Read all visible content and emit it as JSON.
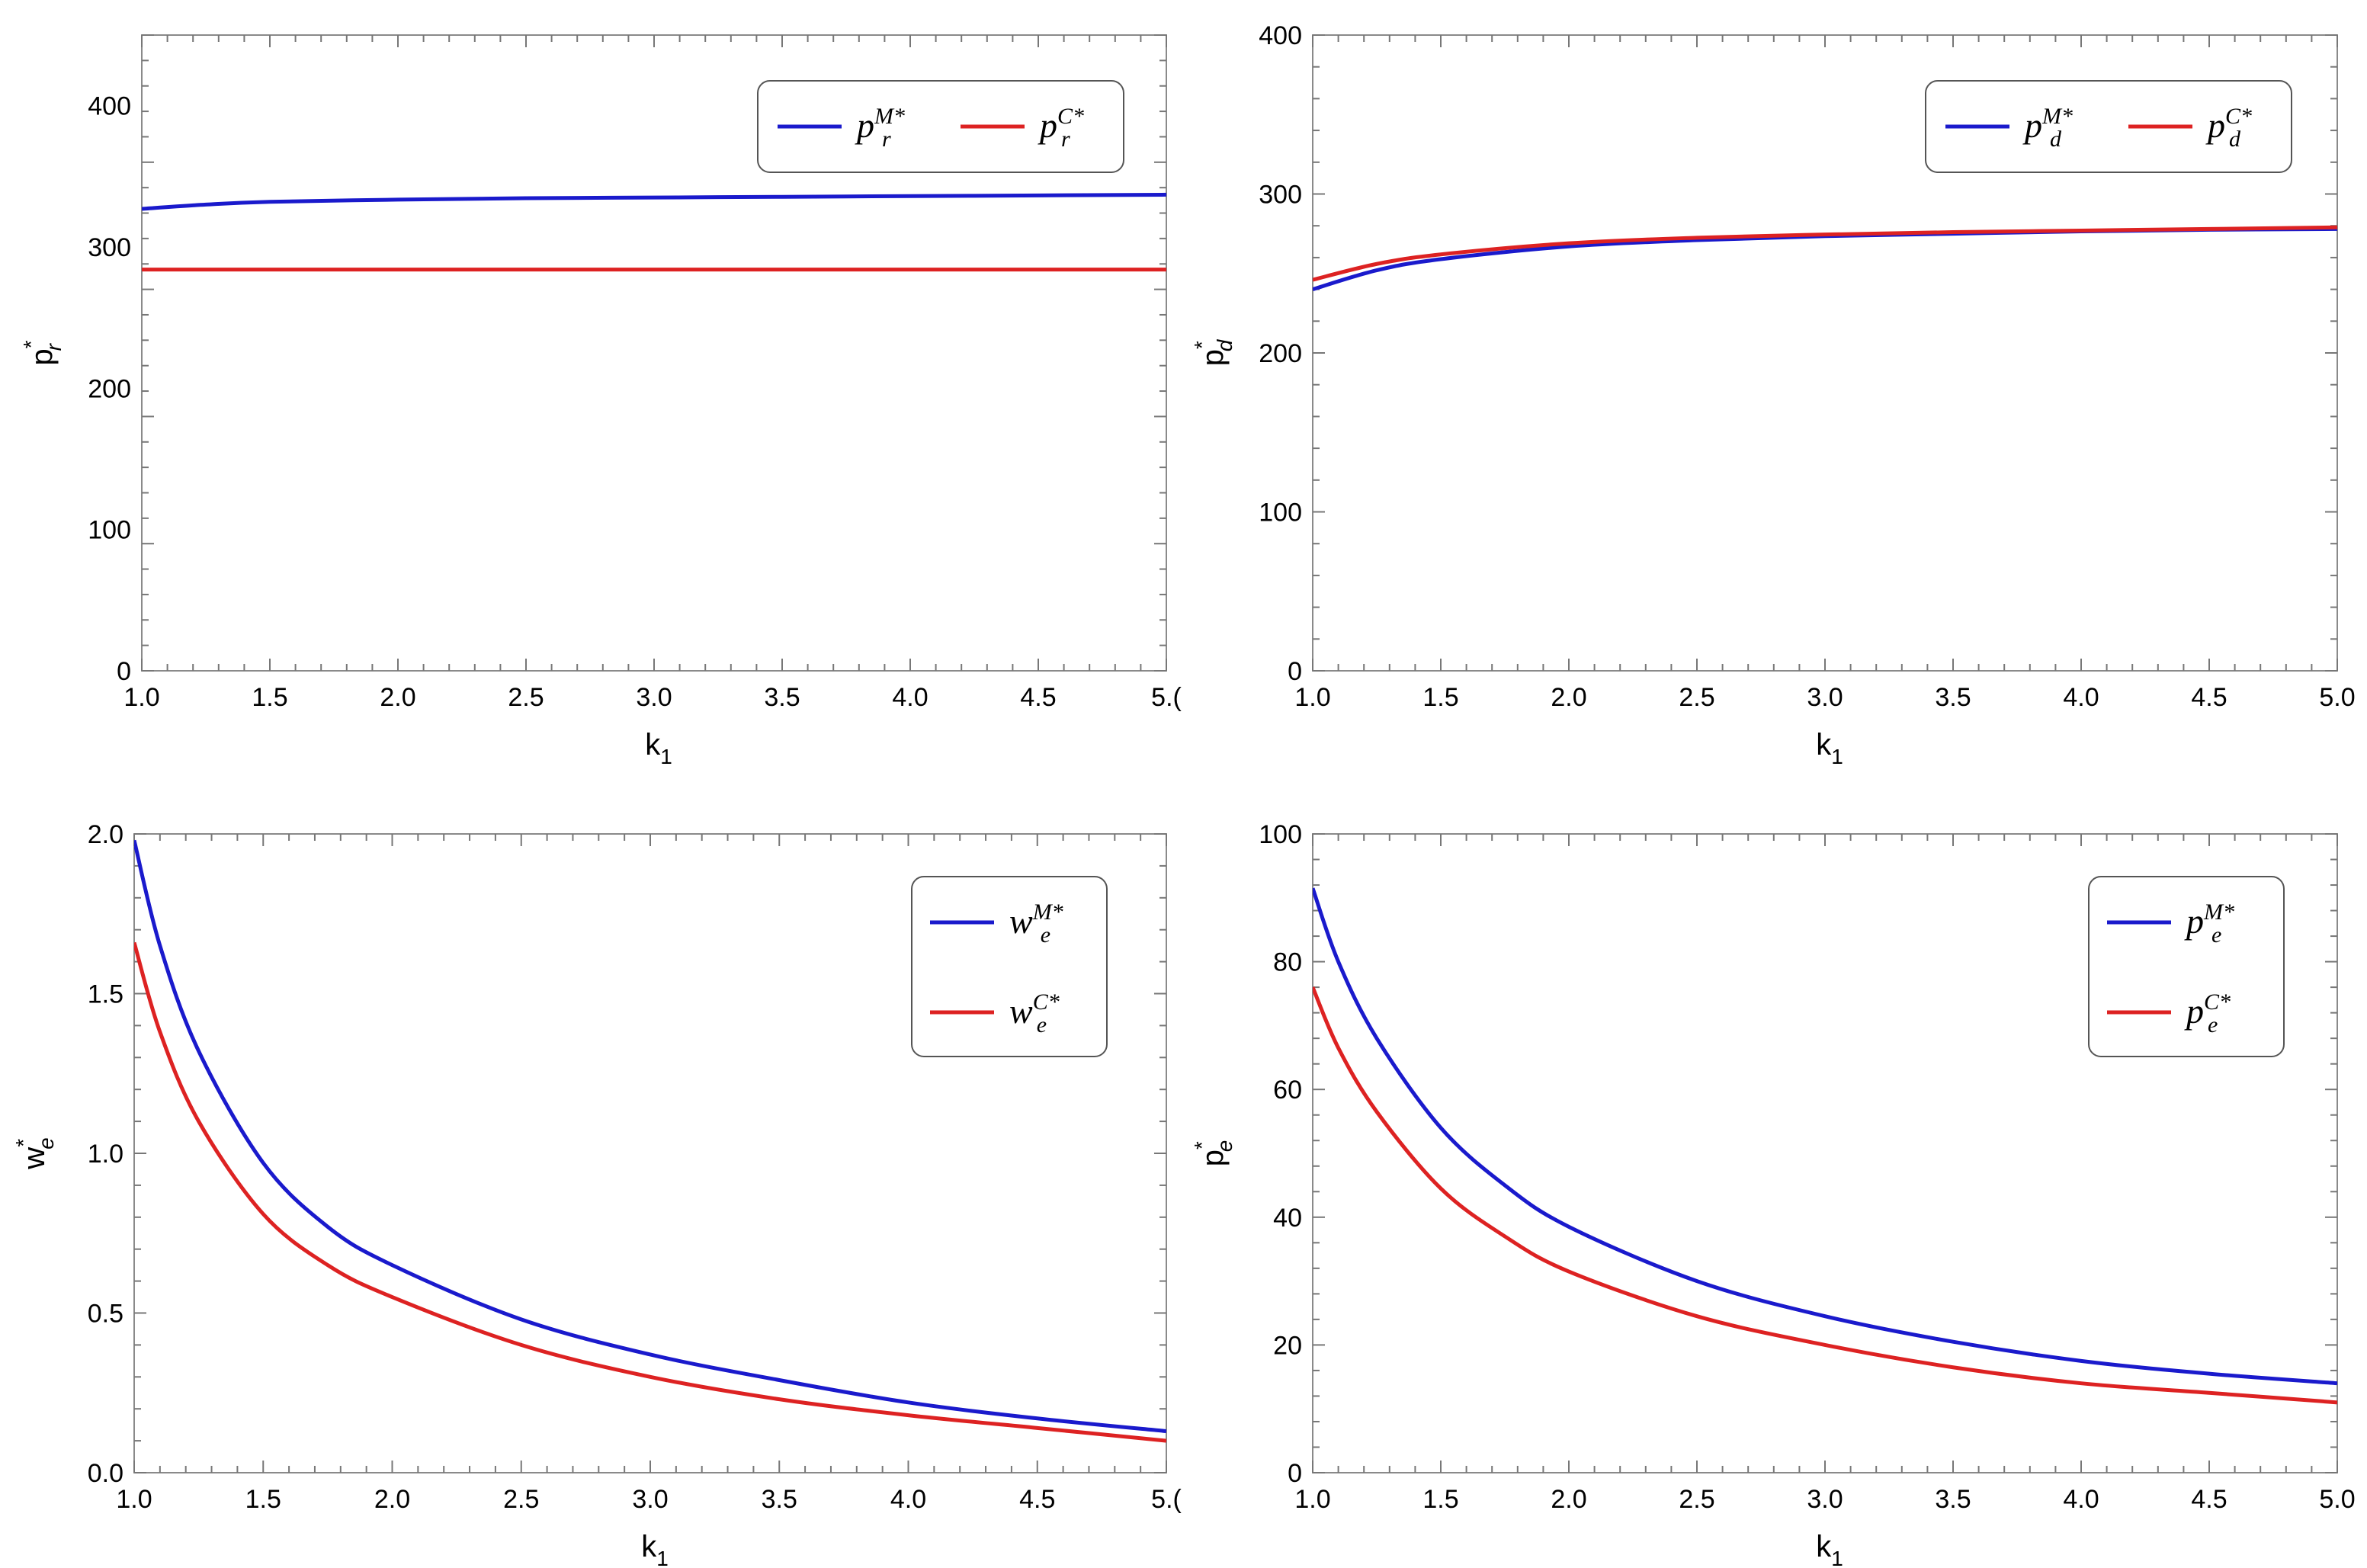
{
  "figure": {
    "background": "#ffffff"
  },
  "colors": {
    "M": "#1a1acc",
    "C": "#dd2222",
    "frame": "#8a8a8a"
  },
  "chart_data": [
    {
      "id": "pr",
      "type": "line",
      "xlabel": "k",
      "xlabel_sub": "1",
      "ylabel": "p",
      "ylabel_sup": "*",
      "ylabel_sub": "r",
      "xlim": [
        1.0,
        5.0
      ],
      "ylim": [
        0,
        450
      ],
      "xticks": [
        1.0,
        1.5,
        2.0,
        2.5,
        3.0,
        3.5,
        4.0,
        4.5,
        5.0
      ],
      "xtick_labels": [
        "1.0",
        "1.5",
        "2.0",
        "2.5",
        "3.0",
        "3.5",
        "4.0",
        "4.5",
        "5.("
      ],
      "yticks": [
        0,
        100,
        200,
        300,
        400
      ],
      "ytick_labels": [
        "0",
        "100",
        "200",
        "300",
        "400"
      ],
      "legend_layout": "horizontal",
      "legend_position": "top-right",
      "series": [
        {
          "name": "p",
          "sup": "M*",
          "sub": "r",
          "color_key": "M",
          "x": [
            1.0,
            1.25,
            1.5,
            2.0,
            2.5,
            3.0,
            3.5,
            4.0,
            4.5,
            5.0
          ],
          "y": [
            327,
            330,
            332,
            333.5,
            334.5,
            335,
            335.5,
            336,
            336.5,
            337
          ]
        },
        {
          "name": "p",
          "sup": "C*",
          "sub": "r",
          "color_key": "C",
          "x": [
            1.0,
            2.0,
            3.0,
            4.0,
            5.0
          ],
          "y": [
            284,
            284,
            284,
            284,
            284
          ]
        }
      ]
    },
    {
      "id": "pd",
      "type": "line",
      "xlabel": "k",
      "xlabel_sub": "1",
      "ylabel": "p",
      "ylabel_sup": "*",
      "ylabel_sub": "d",
      "xlim": [
        1.0,
        5.0
      ],
      "ylim": [
        0,
        400
      ],
      "xticks": [
        1.0,
        1.5,
        2.0,
        2.5,
        3.0,
        3.5,
        4.0,
        4.5,
        5.0
      ],
      "xtick_labels": [
        "1.0",
        "1.5",
        "2.0",
        "2.5",
        "3.0",
        "3.5",
        "4.0",
        "4.5",
        "5.0"
      ],
      "yticks": [
        0,
        100,
        200,
        300,
        400
      ],
      "ytick_labels": [
        "0",
        "100",
        "200",
        "300",
        "400"
      ],
      "legend_layout": "horizontal",
      "legend_position": "top-right",
      "series": [
        {
          "name": "p",
          "sup": "M*",
          "sub": "d",
          "color_key": "M",
          "x": [
            1.0,
            1.25,
            1.5,
            2.0,
            2.5,
            3.0,
            3.5,
            4.0,
            4.5,
            5.0
          ],
          "y": [
            240,
            252,
            259,
            267,
            271,
            273.5,
            275,
            276.5,
            277.5,
            278
          ]
        },
        {
          "name": "p",
          "sup": "C*",
          "sub": "d",
          "color_key": "C",
          "x": [
            1.0,
            1.25,
            1.5,
            2.0,
            2.5,
            3.0,
            3.5,
            4.0,
            4.5,
            5.0
          ],
          "y": [
            246,
            256,
            262,
            269,
            272.5,
            274.5,
            276,
            277,
            278,
            279
          ]
        }
      ]
    },
    {
      "id": "we",
      "type": "line",
      "xlabel": "k",
      "xlabel_sub": "1",
      "ylabel": "w",
      "ylabel_sup": "*",
      "ylabel_sub": "e",
      "xlim": [
        1.0,
        5.0
      ],
      "ylim": [
        0,
        2.0
      ],
      "xticks": [
        1.0,
        1.5,
        2.0,
        2.5,
        3.0,
        3.5,
        4.0,
        4.5,
        5.0
      ],
      "xtick_labels": [
        "1.0",
        "1.5",
        "2.0",
        "2.5",
        "3.0",
        "3.5",
        "4.0",
        "4.5",
        "5.("
      ],
      "yticks": [
        0,
        0.5,
        1.0,
        1.5,
        2.0
      ],
      "ytick_labels": [
        "0.0",
        "0.5",
        "1.0",
        "1.5",
        "2.0"
      ],
      "legend_layout": "vertical",
      "legend_position": "top-right",
      "series": [
        {
          "name": "w",
          "sup": "M*",
          "sub": "e",
          "color_key": "M",
          "x": [
            1.0,
            1.1,
            1.25,
            1.5,
            1.75,
            2.0,
            2.5,
            3.0,
            3.5,
            4.0,
            4.5,
            5.0
          ],
          "y": [
            1.98,
            1.65,
            1.32,
            0.97,
            0.77,
            0.65,
            0.48,
            0.37,
            0.29,
            0.22,
            0.17,
            0.13
          ]
        },
        {
          "name": "w",
          "sup": "C*",
          "sub": "e",
          "color_key": "C",
          "x": [
            1.0,
            1.1,
            1.25,
            1.5,
            1.75,
            2.0,
            2.5,
            3.0,
            3.5,
            4.0,
            4.5,
            5.0
          ],
          "y": [
            1.66,
            1.38,
            1.1,
            0.81,
            0.65,
            0.55,
            0.4,
            0.3,
            0.23,
            0.18,
            0.14,
            0.1
          ]
        }
      ]
    },
    {
      "id": "pe",
      "type": "line",
      "xlabel": "k",
      "xlabel_sub": "1",
      "ylabel": "p",
      "ylabel_sup": "*",
      "ylabel_sub": "e",
      "xlim": [
        1.0,
        5.0
      ],
      "ylim": [
        0,
        100
      ],
      "xticks": [
        1.0,
        1.5,
        2.0,
        2.5,
        3.0,
        3.5,
        4.0,
        4.5,
        5.0
      ],
      "xtick_labels": [
        "1.0",
        "1.5",
        "2.0",
        "2.5",
        "3.0",
        "3.5",
        "4.0",
        "4.5",
        "5.0"
      ],
      "yticks": [
        0,
        20,
        40,
        60,
        80,
        100
      ],
      "ytick_labels": [
        "0",
        "20",
        "40",
        "60",
        "80",
        "100"
      ],
      "legend_layout": "vertical",
      "legend_position": "top-right",
      "series": [
        {
          "name": "p",
          "sup": "M*",
          "sub": "e",
          "color_key": "M",
          "x": [
            1.0,
            1.1,
            1.25,
            1.5,
            1.75,
            2.0,
            2.5,
            3.0,
            3.5,
            4.0,
            4.5,
            5.0
          ],
          "y": [
            91.5,
            80,
            68,
            54,
            45,
            38.5,
            30,
            24.5,
            20.5,
            17.5,
            15.5,
            14
          ]
        },
        {
          "name": "p",
          "sup": "C*",
          "sub": "e",
          "color_key": "C",
          "x": [
            1.0,
            1.1,
            1.25,
            1.5,
            1.75,
            2.0,
            2.5,
            3.0,
            3.5,
            4.0,
            4.5,
            5.0
          ],
          "y": [
            76,
            66.5,
            56.5,
            44.5,
            37,
            31.5,
            24.5,
            20,
            16.5,
            14,
            12.5,
            11
          ]
        }
      ]
    }
  ]
}
